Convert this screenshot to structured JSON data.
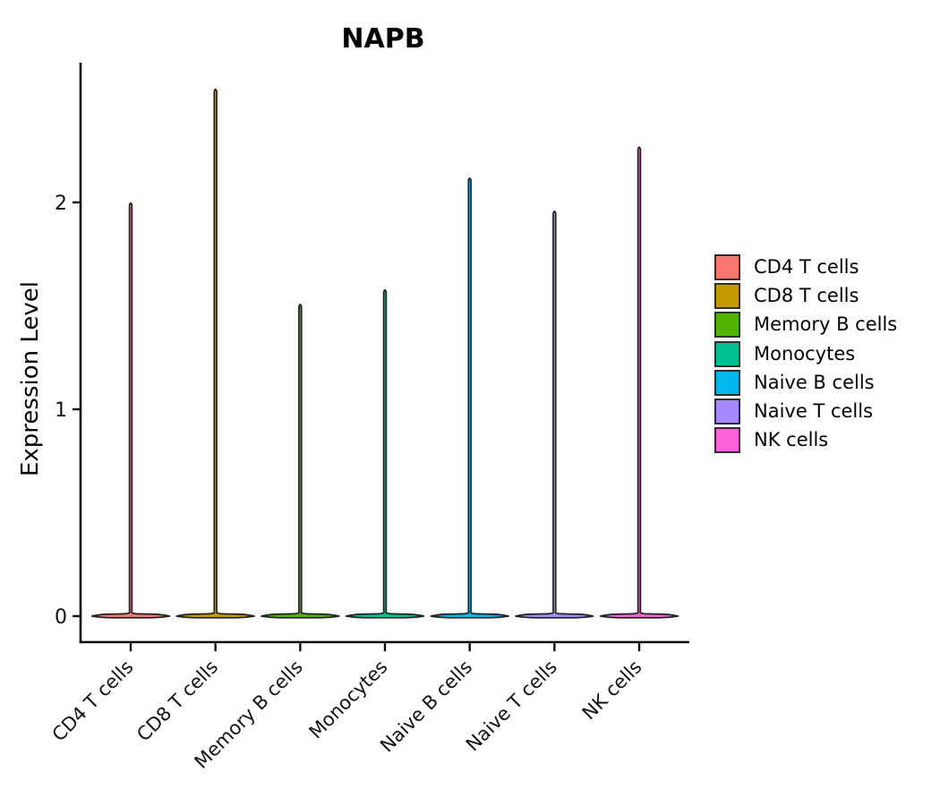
{
  "chart_data": {
    "type": "violin",
    "title": "NAPB",
    "ylabel": "Expression Level",
    "xlabel": "",
    "yticks": [
      0,
      1,
      2
    ],
    "ylim": [
      -0.12,
      2.67
    ],
    "grid": false,
    "legend_position": "right",
    "outline_color": "#202020",
    "axis_color": "#0f0f0f",
    "distribution_note": "Each violin is extremely zero-inflated: density mass concentrated at expression 0 (wide flat base) with a thin spike extending to the maximum expression value",
    "categories": [
      "CD4 T cells",
      "CD8 T cells",
      "Memory B cells",
      "Monocytes",
      "Naive B cells",
      "Naive T cells",
      "NK cells"
    ],
    "series": [
      {
        "name": "CD4 T cells",
        "color": "#F8766D",
        "max_expression": 2.0,
        "density_peak_at": 0
      },
      {
        "name": "CD8 T cells",
        "color": "#C49A00",
        "max_expression": 2.55,
        "density_peak_at": 0
      },
      {
        "name": "Memory B cells",
        "color": "#53B400",
        "max_expression": 1.51,
        "density_peak_at": 0
      },
      {
        "name": "Monocytes",
        "color": "#00C094",
        "max_expression": 1.58,
        "density_peak_at": 0
      },
      {
        "name": "Naive B cells",
        "color": "#00B6EB",
        "max_expression": 2.12,
        "density_peak_at": 0
      },
      {
        "name": "Naive T cells",
        "color": "#A58AFF",
        "max_expression": 1.96,
        "density_peak_at": 0
      },
      {
        "name": "NK cells",
        "color": "#FB61D7",
        "max_expression": 2.27,
        "density_peak_at": 0
      }
    ]
  }
}
